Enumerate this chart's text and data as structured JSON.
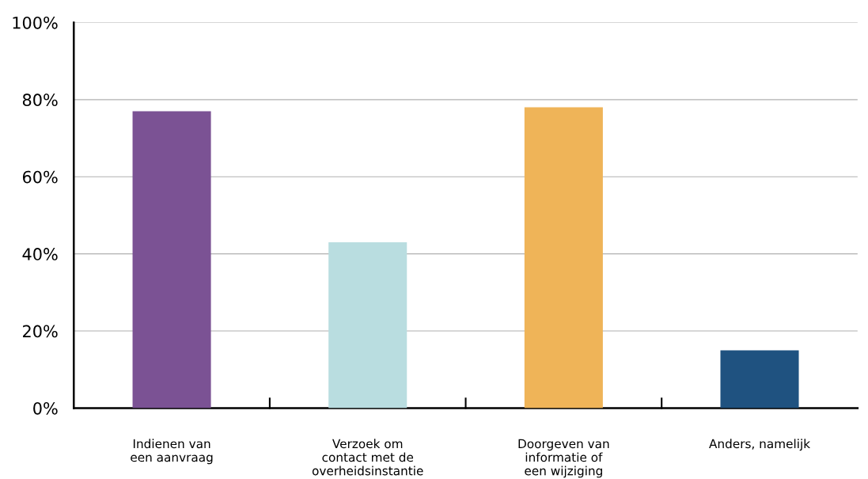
{
  "chart_data": {
    "type": "bar",
    "categories": [
      "Indienen van\neen aanvraag",
      "Verzoek om\ncontact met de\noverheidsinstantie",
      "Doorgeven van\ninformatie of\neen wijziging",
      "Anders, namelijk"
    ],
    "values": [
      77,
      43,
      78,
      15
    ],
    "colors": [
      "#7b5294",
      "#b9dde0",
      "#efb458",
      "#1f5280"
    ],
    "ylim": [
      0,
      100
    ],
    "yticks": [
      {
        "value": 0,
        "label": "0%"
      },
      {
        "value": 20,
        "label": "20%"
      },
      {
        "value": 40,
        "label": "40%"
      },
      {
        "value": 60,
        "label": "60%"
      },
      {
        "value": 80,
        "label": "80%"
      },
      {
        "value": 100,
        "label": "100%"
      }
    ],
    "grid": "y"
  }
}
